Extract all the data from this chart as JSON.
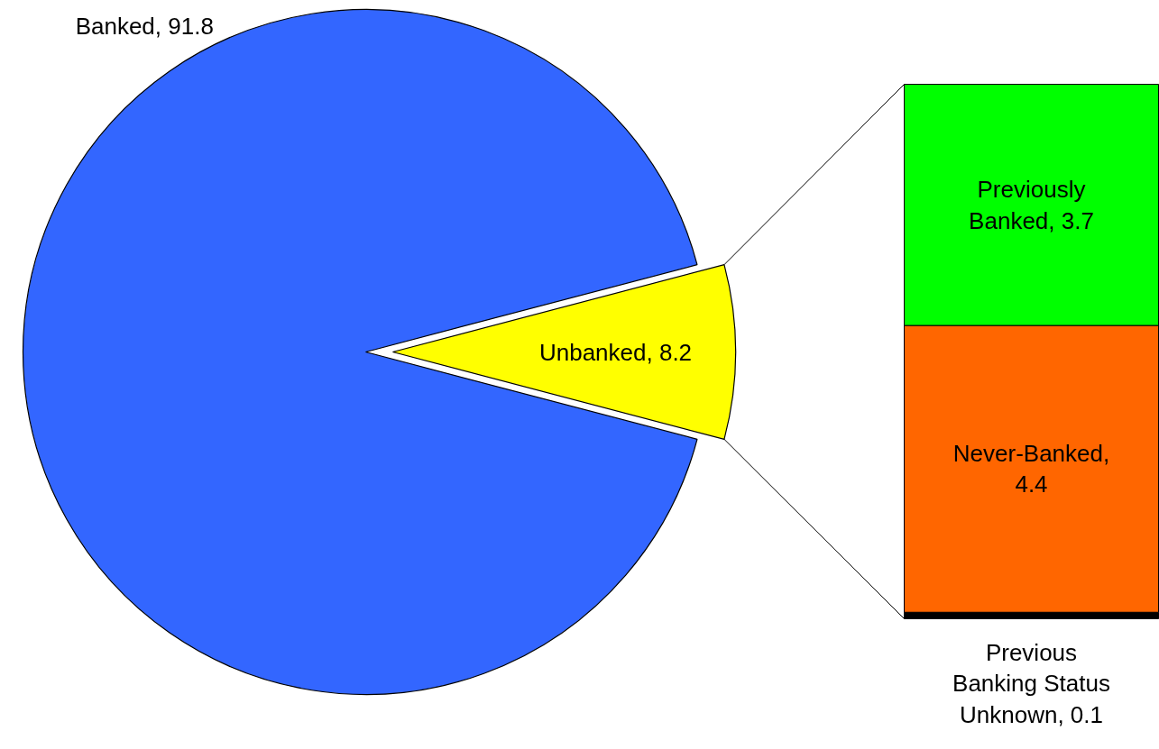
{
  "chart_data": [
    {
      "type": "pie",
      "categories": [
        "Banked, 91.8",
        "Unbanked, 8.2"
      ],
      "values": [
        91.8,
        8.2
      ],
      "colors": [
        "#3366ff",
        "#ffff00"
      ]
    },
    {
      "type": "bar",
      "stacked": true,
      "categories": [
        null
      ],
      "series": [
        {
          "color": "#000000",
          "values": [
            0.1
          ],
          "value_labels": [
            "Previous Banking Status Unknown, 0.1"
          ]
        },
        {
          "color": "#ff6600",
          "values": [
            4.4
          ],
          "value_labels": [
            "Never-Banked, 4.4"
          ]
        },
        {
          "color": "#00ff00",
          "values": [
            3.7
          ],
          "value_labels": [
            "Previously Banked, 3.7"
          ]
        }
      ]
    }
  ]
}
